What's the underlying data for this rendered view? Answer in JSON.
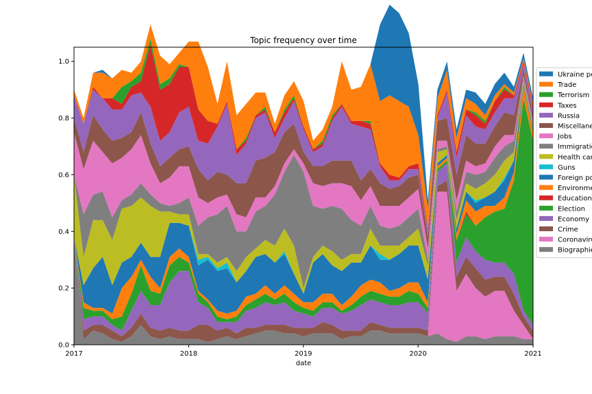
{
  "chart_data": {
    "type": "area",
    "title": "Topic frequency over time",
    "xlabel": "date",
    "ylabel": "",
    "stacked": true,
    "normalized": true,
    "xlim": [
      "2017-01",
      "2021-01"
    ],
    "ylim": [
      0,
      1.05
    ],
    "x_ticks": [
      "2017",
      "2018",
      "2019",
      "2020",
      "2021"
    ],
    "y_ticks": [
      "0.0",
      "0.2",
      "0.4",
      "0.6",
      "0.8",
      "1.0"
    ],
    "legend_position": "right, partially cut off",
    "x": [
      "2017-01",
      "2017-02",
      "2017-03",
      "2017-04",
      "2017-05",
      "2017-06",
      "2017-07",
      "2017-08",
      "2017-09",
      "2017-10",
      "2017-11",
      "2017-12",
      "2018-01",
      "2018-02",
      "2018-03",
      "2018-04",
      "2018-05",
      "2018-06",
      "2018-07",
      "2018-08",
      "2018-09",
      "2018-10",
      "2018-11",
      "2018-12",
      "2019-01",
      "2019-02",
      "2019-03",
      "2019-04",
      "2019-05",
      "2019-06",
      "2019-07",
      "2019-08",
      "2019-09",
      "2019-10",
      "2019-11",
      "2019-12",
      "2020-01",
      "2020-02",
      "2020-03",
      "2020-04",
      "2020-05",
      "2020-06",
      "2020-07",
      "2020-08",
      "2020-09",
      "2020-10",
      "2020-11",
      "2020-12",
      "2021-01"
    ],
    "series": [
      {
        "name": "Biographies",
        "color": "#7f7f7f",
        "values": [
          0.38,
          0.02,
          0.05,
          0.04,
          0.02,
          0.01,
          0.03,
          0.07,
          0.03,
          0.02,
          0.03,
          0.02,
          0.02,
          0.02,
          0.01,
          0.02,
          0.03,
          0.02,
          0.03,
          0.04,
          0.05,
          0.05,
          0.04,
          0.04,
          0.03,
          0.04,
          0.04,
          0.04,
          0.02,
          0.03,
          0.03,
          0.05,
          0.05,
          0.04,
          0.04,
          0.04,
          0.04,
          0.03,
          0.04,
          0.02,
          0.01,
          0.03,
          0.03,
          0.02,
          0.03,
          0.03,
          0.03,
          0.02,
          0.02
        ]
      },
      {
        "name": "Coronavirus",
        "color": "#e377c2",
        "values": [
          0,
          0,
          0,
          0,
          0,
          0,
          0,
          0,
          0,
          0,
          0,
          0,
          0,
          0,
          0,
          0,
          0,
          0,
          0,
          0,
          0,
          0,
          0,
          0,
          0,
          0,
          0,
          0,
          0,
          0,
          0,
          0,
          0,
          0,
          0,
          0,
          0,
          0,
          0.5,
          0.52,
          0.18,
          0.22,
          0.17,
          0.15,
          0.16,
          0.16,
          0.09,
          0.05,
          0
        ]
      },
      {
        "name": "Crime",
        "color": "#8c564b",
        "values": [
          0,
          0.03,
          0.02,
          0.03,
          0.03,
          0.02,
          0.03,
          0.04,
          0.03,
          0.03,
          0.03,
          0.03,
          0.03,
          0.05,
          0.06,
          0.03,
          0.03,
          0.02,
          0.03,
          0.02,
          0.02,
          0.02,
          0.03,
          0.02,
          0.03,
          0.02,
          0.04,
          0.03,
          0.03,
          0.02,
          0.02,
          0.03,
          0.02,
          0.02,
          0.02,
          0.02,
          0.02,
          0.02,
          0.02,
          0.04,
          0.05,
          0.06,
          0.07,
          0.06,
          0.05,
          0.05,
          0.06,
          0.03,
          0.03
        ]
      },
      {
        "name": "Economy",
        "color": "#9467bd",
        "values": [
          0,
          0.04,
          0.03,
          0.03,
          0.02,
          0.02,
          0.06,
          0.08,
          0.08,
          0.09,
          0.16,
          0.21,
          0.21,
          0.08,
          0.06,
          0.03,
          0.02,
          0.04,
          0.06,
          0.07,
          0.08,
          0.07,
          0.08,
          0.06,
          0.05,
          0.04,
          0.05,
          0.06,
          0.06,
          0.07,
          0.09,
          0.08,
          0.08,
          0.08,
          0.08,
          0.09,
          0.09,
          0.06,
          0.05,
          0.06,
          0.05,
          0.07,
          0.06,
          0.07,
          0.05,
          0.05,
          0.07,
          0.02,
          0.02
        ]
      },
      {
        "name": "Election",
        "color": "#2ca02c",
        "values": [
          0,
          0.04,
          0.02,
          0.02,
          0.02,
          0.05,
          0.06,
          0.09,
          0.05,
          0.04,
          0.06,
          0.05,
          0.03,
          0.03,
          0.02,
          0.02,
          0.01,
          0.02,
          0.02,
          0.03,
          0.03,
          0.02,
          0.03,
          0.03,
          0.02,
          0.02,
          0.02,
          0.02,
          0.01,
          0.02,
          0.03,
          0.03,
          0.03,
          0.03,
          0.03,
          0.04,
          0.03,
          0.02,
          0.01,
          0.01,
          0.08,
          0.08,
          0.09,
          0.15,
          0.18,
          0.19,
          0.33,
          0.75,
          0.65
        ]
      },
      {
        "name": "Education",
        "color": "#d62728",
        "values": [
          0,
          0,
          0,
          0,
          0,
          0,
          0,
          0,
          0,
          0,
          0,
          0,
          0,
          0,
          0,
          0,
          0,
          0,
          0,
          0,
          0,
          0,
          0,
          0,
          0,
          0,
          0,
          0,
          0,
          0,
          0,
          0,
          0,
          0,
          0,
          0,
          0,
          0,
          0,
          0,
          0,
          0.01,
          0,
          0,
          0,
          0,
          0,
          0,
          0
        ]
      },
      {
        "name": "Environment",
        "color": "#ff7f0e",
        "values": [
          0,
          0.02,
          0.01,
          0.01,
          0.02,
          0.1,
          0.06,
          0.02,
          0.05,
          0.02,
          0.03,
          0.03,
          0.02,
          0.01,
          0.01,
          0.02,
          0.02,
          0.02,
          0.03,
          0.02,
          0.03,
          0.02,
          0.03,
          0.03,
          0.02,
          0.03,
          0.03,
          0.03,
          0.02,
          0.03,
          0.04,
          0.04,
          0.04,
          0.02,
          0.03,
          0.03,
          0.04,
          0.02,
          0.01,
          0.01,
          0.02,
          0.04,
          0.05,
          0.04,
          0.02,
          0.04,
          0.03,
          0.04,
          0.03
        ]
      },
      {
        "name": "Foreign policy",
        "color": "#1f77b4",
        "values": [
          0,
          0.06,
          0.14,
          0.18,
          0.1,
          0.09,
          0.07,
          0.06,
          0.07,
          0.11,
          0.12,
          0.09,
          0.11,
          0.09,
          0.14,
          0.14,
          0.16,
          0.1,
          0.09,
          0.13,
          0.11,
          0.11,
          0.11,
          0.07,
          0.03,
          0.14,
          0.14,
          0.1,
          0.12,
          0.12,
          0.08,
          0.12,
          0.08,
          0.11,
          0.12,
          0.13,
          0.13,
          0.08,
          0.01,
          0.01,
          0.02,
          0.03,
          0.03,
          0.03,
          0.05,
          0.06,
          0.04,
          0.01,
          0.01
        ]
      },
      {
        "name": "Guns",
        "color": "#17becf",
        "values": [
          0,
          0,
          0,
          0,
          0,
          0,
          0,
          0,
          0,
          0,
          0,
          0,
          0,
          0.02,
          0.01,
          0.01,
          0.02,
          0,
          0,
          0,
          0,
          0,
          0.01,
          0,
          0,
          0,
          0,
          0,
          0,
          0,
          0,
          0,
          0.02,
          0,
          0,
          0,
          0,
          0,
          0,
          0,
          0,
          0,
          0.01,
          0,
          0,
          0.01,
          0,
          0,
          0
        ]
      },
      {
        "name": "Health care",
        "color": "#bcbd22",
        "values": [
          0.22,
          0.1,
          0.17,
          0.13,
          0.16,
          0.19,
          0.18,
          0.16,
          0.18,
          0.16,
          0.04,
          0.03,
          0.04,
          0.02,
          0.01,
          0.02,
          0.02,
          0.04,
          0.05,
          0.03,
          0.05,
          0.06,
          0.08,
          0.1,
          0.02,
          0.02,
          0.03,
          0.05,
          0.04,
          0.03,
          0.03,
          0.06,
          0.03,
          0.05,
          0.03,
          0.03,
          0.06,
          0.05,
          0.04,
          0.02,
          0.03,
          0.03,
          0.04,
          0.05,
          0.06,
          0.06,
          0.03,
          0.01,
          0.01
        ]
      },
      {
        "name": "Immigration",
        "color": "#7f7f7f",
        "values": [
          0,
          0.15,
          0.09,
          0.1,
          0.08,
          0.03,
          0.04,
          0.05,
          0.04,
          0.03,
          0.02,
          0.04,
          0.06,
          0.1,
          0.13,
          0.17,
          0.18,
          0.14,
          0.09,
          0.13,
          0.12,
          0.18,
          0.2,
          0.32,
          0.41,
          0.18,
          0.13,
          0.16,
          0.18,
          0.12,
          0.1,
          0.08,
          0.07,
          0.06,
          0.07,
          0.07,
          0.07,
          0.02,
          0.01,
          0.01,
          0.03,
          0.04,
          0.05,
          0.04,
          0.06,
          0.05,
          0.04,
          0.01,
          0.01
        ]
      },
      {
        "name": "Jobs",
        "color": "#e377c2",
        "values": [
          0.15,
          0.16,
          0.19,
          0.14,
          0.19,
          0.15,
          0.16,
          0.17,
          0.11,
          0.07,
          0.1,
          0.13,
          0.11,
          0.1,
          0.05,
          0.06,
          0.04,
          0.06,
          0.05,
          0.05,
          0.03,
          0.03,
          0.03,
          0.02,
          0.03,
          0.08,
          0.08,
          0.08,
          0.09,
          0.12,
          0.09,
          0.07,
          0.07,
          0.08,
          0.07,
          0.07,
          0.07,
          0.04,
          0.03,
          0.02,
          0.04,
          0.04,
          0.03,
          0.03,
          0.04,
          0.04,
          0.02,
          0.01,
          0.01
        ]
      },
      {
        "name": "Miscellaneous",
        "color": "#8c564b",
        "values": [
          0.05,
          0.06,
          0.09,
          0.08,
          0.08,
          0.07,
          0.06,
          0.08,
          0.07,
          0.06,
          0.07,
          0.06,
          0.07,
          0.1,
          0.08,
          0.09,
          0.07,
          0.11,
          0.12,
          0.13,
          0.14,
          0.12,
          0.11,
          0.09,
          0.04,
          0.06,
          0.07,
          0.08,
          0.08,
          0.09,
          0.07,
          0.06,
          0.08,
          0.06,
          0.07,
          0.07,
          0.05,
          0.04,
          0.07,
          0.08,
          0.09,
          0.09,
          0.08,
          0.07,
          0.07,
          0.08,
          0.07,
          0.02,
          0.02
        ]
      },
      {
        "name": "Russia",
        "color": "#9467bd",
        "values": [
          0.08,
          0.1,
          0.09,
          0.11,
          0.11,
          0.1,
          0.13,
          0.07,
          0.13,
          0.09,
          0.09,
          0.13,
          0.14,
          0.1,
          0.13,
          0.16,
          0.25,
          0.1,
          0.14,
          0.15,
          0.16,
          0.05,
          0.05,
          0.08,
          0.08,
          0.05,
          0.07,
          0.14,
          0.19,
          0.13,
          0.19,
          0.14,
          0.06,
          0.03,
          0.02,
          0.03,
          0.02,
          0.02,
          0.01,
          0.09,
          0.06,
          0.07,
          0.06,
          0.05,
          0.05,
          0.05,
          0.06,
          0.02,
          0.02
        ]
      },
      {
        "name": "Taxes",
        "color": "#d62728",
        "values": [
          0,
          0,
          0.01,
          0,
          0.04,
          0.02,
          0.03,
          0.04,
          0.22,
          0.18,
          0.17,
          0.16,
          0.14,
          0.11,
          0.08,
          0.01,
          0.01,
          0.02,
          0.01,
          0.01,
          0.01,
          0.02,
          0.02,
          0.01,
          0.01,
          0.01,
          0.01,
          0.01,
          0.01,
          0.01,
          0.02,
          0.02,
          0.01,
          0.02,
          0.01,
          0.01,
          0.02,
          0.01,
          0.01,
          0.01,
          0.02,
          0.02,
          0.04,
          0.02,
          0.04,
          0.03,
          0.01,
          0.01,
          0.01
        ]
      },
      {
        "name": "Terrorism",
        "color": "#2ca02c",
        "values": [
          0,
          0,
          0,
          0,
          0,
          0.06,
          0.02,
          0.03,
          0.02,
          0.02,
          0.02,
          0.01,
          0,
          0,
          0,
          0,
          0,
          0,
          0.01,
          0,
          0.01,
          0,
          0.01,
          0.01,
          0,
          0,
          0.01,
          0.01,
          0,
          0,
          0,
          0.01,
          0,
          0,
          0,
          0,
          0,
          0,
          0,
          0,
          0,
          0,
          0.01,
          0.01,
          0,
          0.01,
          0,
          0,
          0
        ]
      },
      {
        "name": "Trade",
        "color": "#ff7f0e",
        "values": [
          0.02,
          0.02,
          0.05,
          0.09,
          0.07,
          0.06,
          0.03,
          0.04,
          0.05,
          0.1,
          0.05,
          0.04,
          0.09,
          0.24,
          0.19,
          0.07,
          0.14,
          0.12,
          0.12,
          0.08,
          0.05,
          0.03,
          0.05,
          0.05,
          0.09,
          0.03,
          0.04,
          0.03,
          0.15,
          0.11,
          0.12,
          0.2,
          0.22,
          0.28,
          0.27,
          0.21,
          0.1,
          0.07,
          0.06,
          0.07,
          0.05,
          0.04,
          0.03,
          0.02,
          0.02,
          0.01,
          0.01,
          0.01,
          0.01
        ]
      },
      {
        "name": "Ukraine policy",
        "color": "#1f77b4",
        "values": [
          0,
          0,
          0,
          0.01,
          0,
          0,
          0,
          0,
          0,
          0,
          0,
          0,
          0,
          0,
          0,
          0,
          0,
          0,
          0,
          0,
          0,
          0,
          0,
          0,
          0,
          0,
          0,
          0,
          0,
          0,
          0,
          0,
          0.27,
          0.32,
          0.31,
          0.26,
          0.18,
          0.03,
          0.03,
          0.03,
          0.03,
          0.03,
          0.04,
          0.04,
          0.04,
          0.04,
          0.02,
          0.02,
          0.02
        ]
      }
    ]
  }
}
